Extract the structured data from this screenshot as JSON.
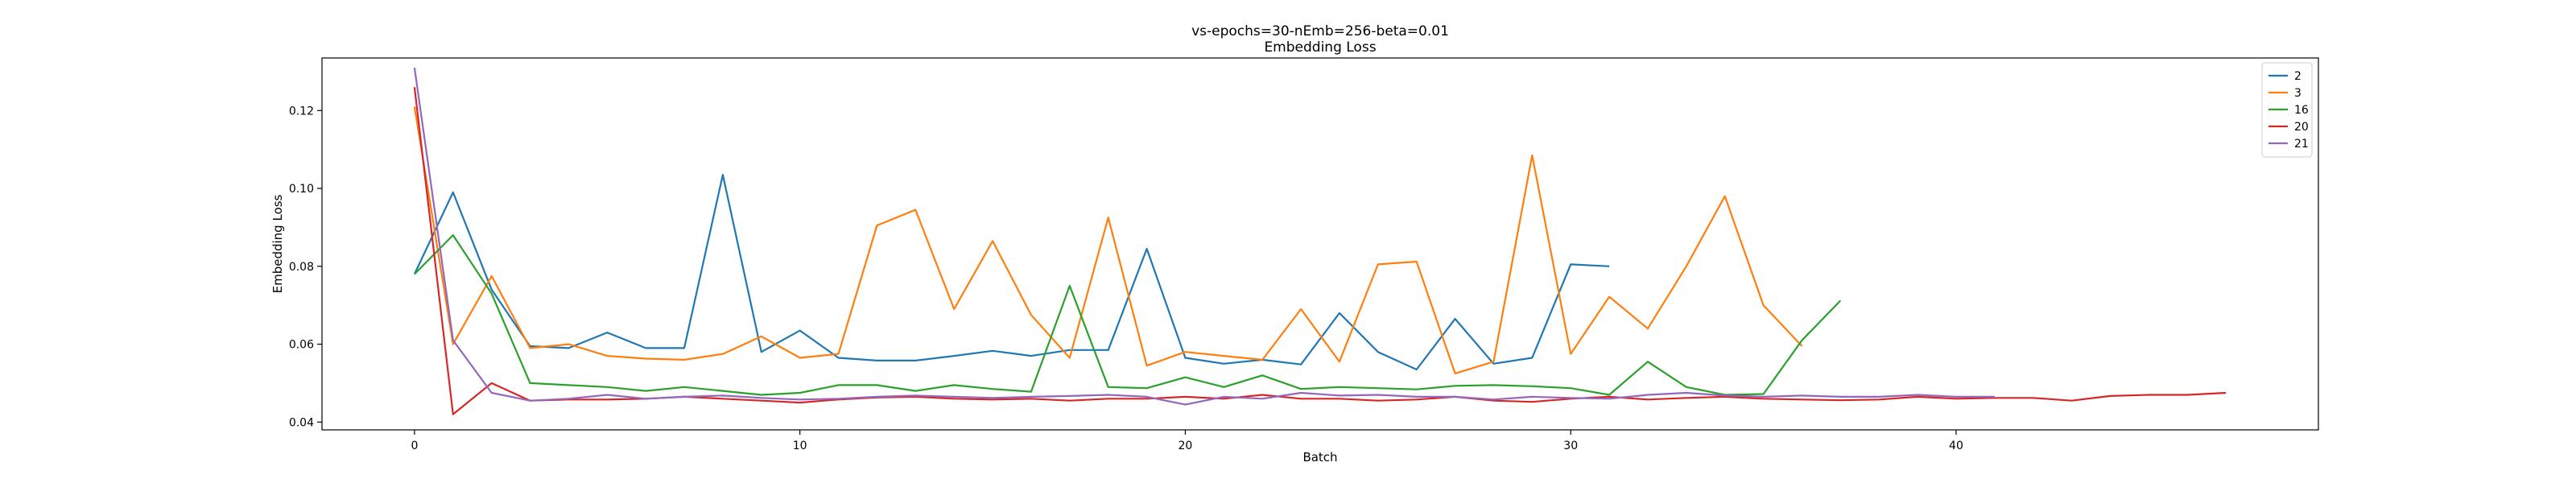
{
  "chart_data": {
    "type": "line",
    "title": "vs-epochs=30-nEmb=256-beta=0.01",
    "subtitle": "Embedding Loss",
    "xlabel": "Batch",
    "ylabel": "Embedding Loss",
    "xlim": [
      -2.4,
      49.4
    ],
    "ylim": [
      0.038,
      0.1335
    ],
    "xticks": [
      0,
      10,
      20,
      30,
      40
    ],
    "yticks": [
      0.04,
      0.06,
      0.08,
      0.1,
      0.12
    ],
    "ytick_labels": [
      "0.04",
      "0.06",
      "0.08",
      "0.10",
      "0.12"
    ],
    "grid": false,
    "legend_position": "top-right",
    "series": [
      {
        "name": "2",
        "color": "#1f77b4",
        "x": [
          0,
          1,
          2,
          3,
          4,
          5,
          6,
          7,
          8,
          9,
          10,
          11,
          12,
          13,
          14,
          15,
          16,
          17,
          18,
          19,
          20,
          21,
          22,
          23,
          24,
          25,
          26,
          27,
          28,
          29,
          30,
          31
        ],
        "values": [
          0.078,
          0.099,
          0.074,
          0.0595,
          0.059,
          0.063,
          0.059,
          0.059,
          0.1035,
          0.058,
          0.0635,
          0.0565,
          0.0558,
          0.0558,
          0.057,
          0.0583,
          0.057,
          0.0585,
          0.0585,
          0.0845,
          0.0565,
          0.055,
          0.056,
          0.0548,
          0.068,
          0.058,
          0.0535,
          0.0665,
          0.055,
          0.0565,
          0.0805,
          0.08
        ]
      },
      {
        "name": "3",
        "color": "#ff7f0e",
        "x": [
          0,
          1,
          2,
          3,
          4,
          5,
          6,
          7,
          8,
          9,
          10,
          11,
          12,
          13,
          14,
          15,
          16,
          17,
          18,
          19,
          20,
          21,
          22,
          23,
          24,
          25,
          26,
          27,
          28,
          29,
          30,
          31,
          32,
          33,
          34,
          35,
          36
        ],
        "values": [
          0.121,
          0.06,
          0.0775,
          0.059,
          0.06,
          0.057,
          0.0563,
          0.056,
          0.0575,
          0.062,
          0.0565,
          0.0575,
          0.0905,
          0.0945,
          0.069,
          0.0865,
          0.0675,
          0.0565,
          0.0925,
          0.0545,
          0.058,
          0.057,
          0.056,
          0.069,
          0.0555,
          0.0805,
          0.0812,
          0.0525,
          0.0555,
          0.1085,
          0.0575,
          0.0722,
          0.064,
          0.08,
          0.098,
          0.07,
          0.0595
        ]
      },
      {
        "name": "16",
        "color": "#2ca02c",
        "x": [
          0,
          1,
          2,
          3,
          4,
          5,
          6,
          7,
          8,
          9,
          10,
          11,
          12,
          13,
          14,
          15,
          16,
          17,
          18,
          19,
          20,
          21,
          22,
          23,
          24,
          25,
          26,
          27,
          28,
          29,
          30,
          31,
          32,
          33,
          34,
          35,
          36,
          37
        ],
        "values": [
          0.078,
          0.088,
          0.073,
          0.05,
          0.0495,
          0.049,
          0.048,
          0.049,
          0.048,
          0.047,
          0.0475,
          0.0495,
          0.0495,
          0.048,
          0.0495,
          0.0485,
          0.0478,
          0.075,
          0.049,
          0.0487,
          0.0515,
          0.049,
          0.052,
          0.0485,
          0.049,
          0.0487,
          0.0484,
          0.0493,
          0.0495,
          0.0492,
          0.0487,
          0.047,
          0.0555,
          0.049,
          0.047,
          0.0472,
          0.061,
          0.0712
        ]
      },
      {
        "name": "20",
        "color": "#d62728",
        "x": [
          0,
          1,
          2,
          3,
          4,
          5,
          6,
          7,
          8,
          9,
          10,
          11,
          12,
          13,
          14,
          15,
          16,
          17,
          18,
          19,
          20,
          21,
          22,
          23,
          24,
          25,
          26,
          27,
          28,
          29,
          30,
          31,
          32,
          33,
          34,
          35,
          36,
          37,
          38,
          39,
          40,
          41,
          42,
          43,
          44,
          45,
          46,
          47
        ],
        "values": [
          0.126,
          0.042,
          0.05,
          0.0455,
          0.0458,
          0.0458,
          0.046,
          0.0465,
          0.046,
          0.0455,
          0.045,
          0.0458,
          0.0463,
          0.0465,
          0.046,
          0.0458,
          0.046,
          0.0455,
          0.046,
          0.046,
          0.0465,
          0.046,
          0.047,
          0.046,
          0.046,
          0.0455,
          0.0458,
          0.0465,
          0.0455,
          0.0452,
          0.046,
          0.0465,
          0.0458,
          0.0462,
          0.0465,
          0.046,
          0.0458,
          0.0456,
          0.0458,
          0.0465,
          0.046,
          0.0462,
          0.0462,
          0.0455,
          0.0467,
          0.047,
          0.047,
          0.0475
        ]
      },
      {
        "name": "21",
        "color": "#9467bd",
        "x": [
          0,
          1,
          2,
          3,
          4,
          5,
          6,
          7,
          8,
          9,
          10,
          11,
          12,
          13,
          14,
          15,
          16,
          17,
          18,
          19,
          20,
          21,
          22,
          23,
          24,
          25,
          26,
          27,
          28,
          29,
          30,
          31,
          32,
          33,
          34,
          35,
          36,
          37,
          38,
          39,
          40,
          41
        ],
        "values": [
          0.131,
          0.061,
          0.0475,
          0.0455,
          0.046,
          0.047,
          0.046,
          0.0465,
          0.0468,
          0.0462,
          0.0458,
          0.046,
          0.0465,
          0.0468,
          0.0465,
          0.0462,
          0.0465,
          0.0467,
          0.047,
          0.0465,
          0.0445,
          0.0465,
          0.046,
          0.0475,
          0.0468,
          0.047,
          0.0465,
          0.0465,
          0.0458,
          0.0465,
          0.0462,
          0.046,
          0.047,
          0.0475,
          0.0468,
          0.0465,
          0.0468,
          0.0465,
          0.0465,
          0.047,
          0.0465,
          0.0465
        ]
      }
    ]
  }
}
